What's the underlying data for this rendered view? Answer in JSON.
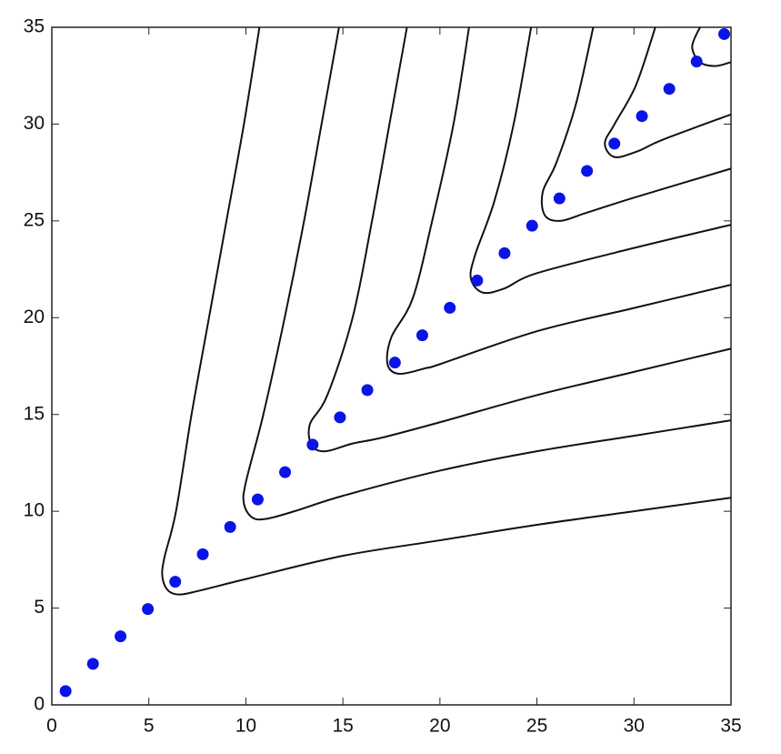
{
  "chart_data": {
    "type": "scatter",
    "xlim": [
      0,
      35
    ],
    "ylim": [
      0,
      35
    ],
    "xticks": [
      0,
      5,
      10,
      15,
      20,
      25,
      30,
      35
    ],
    "yticks": [
      0,
      5,
      10,
      15,
      20,
      25,
      30,
      35
    ],
    "grid": false,
    "series": [
      {
        "type": "scatter",
        "color": "#0a14e6",
        "x": [
          0.71,
          2.12,
          3.54,
          4.95,
          6.36,
          7.78,
          9.19,
          10.61,
          12.02,
          13.44,
          14.85,
          16.26,
          17.68,
          19.09,
          20.51,
          21.92,
          23.33,
          24.75,
          26.16,
          27.58,
          28.99,
          30.41,
          31.82,
          33.23,
          34.65
        ],
        "values": [
          0.71,
          2.12,
          3.54,
          4.95,
          6.36,
          7.78,
          9.19,
          10.61,
          12.02,
          13.44,
          14.85,
          16.26,
          17.68,
          19.09,
          20.51,
          21.92,
          23.33,
          24.75,
          26.16,
          27.58,
          28.99,
          30.41,
          31.82,
          33.23,
          34.65
        ]
      },
      {
        "type": "line",
        "color": "#111111",
        "x": [
          10.7,
          9.9,
          9.0,
          8.1,
          7.2,
          6.4,
          5.8,
          5.7,
          6.0,
          6.6,
          7.6,
          10,
          15,
          20,
          25,
          30,
          35
        ],
        "values": [
          35,
          30,
          25,
          20,
          15,
          10,
          7.6,
          6.6,
          5.9,
          5.7,
          5.9,
          6.5,
          7.7,
          8.5,
          9.3,
          10.0,
          10.7
        ]
      },
      {
        "type": "line",
        "color": "#111111",
        "x": [
          14.8,
          13.9,
          13.0,
          12.0,
          10.9,
          10.0,
          9.9,
          10.3,
          11.0,
          12.5,
          15,
          20,
          25,
          30,
          35
        ],
        "values": [
          35,
          30,
          25,
          20,
          15,
          11.5,
          10.4,
          9.7,
          9.6,
          10.0,
          10.8,
          12.1,
          13.1,
          13.9,
          14.7
        ]
      },
      {
        "type": "line",
        "color": "#111111",
        "x": [
          18.3,
          17.4,
          16.5,
          15.5,
          14.2,
          13.3,
          13.4,
          14.1,
          15.5,
          17,
          20,
          25,
          30,
          35
        ],
        "values": [
          35,
          30,
          25,
          20,
          16,
          14.5,
          13.4,
          13.1,
          13.5,
          13.8,
          14.6,
          16.0,
          17.2,
          18.4
        ]
      },
      {
        "type": "line",
        "color": "#111111",
        "x": [
          21.5,
          20.7,
          19.6,
          18.6,
          17.5,
          17.3,
          17.9,
          19.3,
          20,
          25,
          30,
          35
        ],
        "values": [
          35,
          30,
          25,
          21,
          19,
          17.6,
          17.1,
          17.4,
          17.6,
          19.3,
          20.5,
          21.7
        ]
      },
      {
        "type": "line",
        "color": "#111111",
        "x": [
          24.7,
          23.8,
          22.8,
          21.8,
          21.6,
          22.2,
          23.3,
          25,
          30,
          35
        ],
        "values": [
          35,
          30,
          26,
          23.2,
          22.0,
          21.3,
          21.5,
          22.3,
          23.6,
          24.8
        ]
      },
      {
        "type": "line",
        "color": "#111111",
        "x": [
          27.9,
          27.0,
          26.0,
          25.3,
          25.4,
          26.2,
          27.5,
          30,
          35
        ],
        "values": [
          35,
          31,
          28,
          26.5,
          25.3,
          25.0,
          25.4,
          26.2,
          27.7
        ]
      },
      {
        "type": "line",
        "color": "#111111",
        "x": [
          31.1,
          30.1,
          29.0,
          28.5,
          29.0,
          30.2,
          31.5,
          35
        ],
        "values": [
          35,
          32,
          30.0,
          29.0,
          28.3,
          28.6,
          29.2,
          30.5
        ]
      },
      {
        "type": "line",
        "color": "#111111",
        "x": [
          33.4,
          33.0,
          33.4,
          34.2,
          35
        ],
        "values": [
          35,
          34.0,
          33.2,
          33.0,
          33.2
        ]
      }
    ]
  }
}
